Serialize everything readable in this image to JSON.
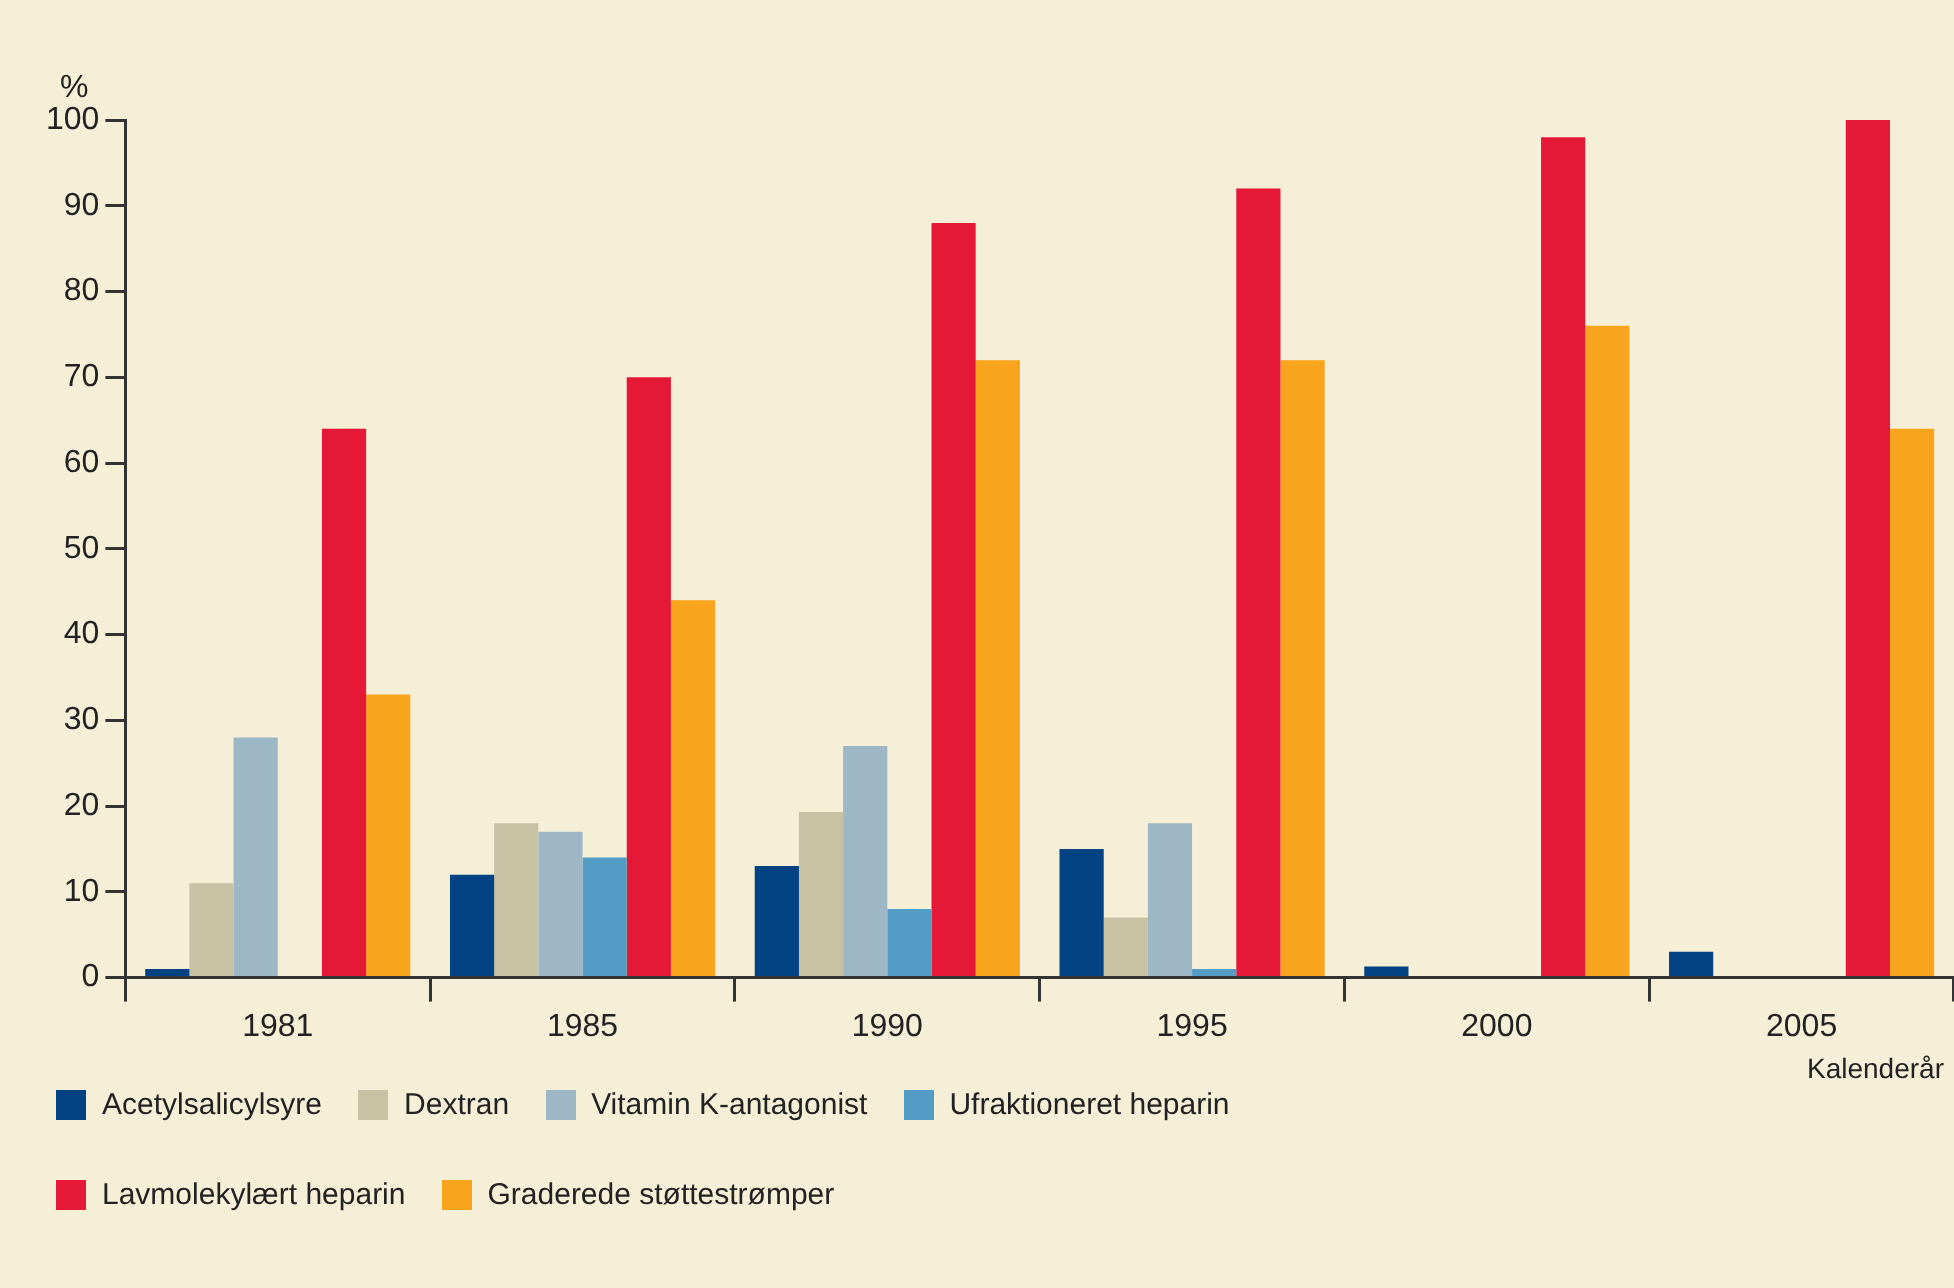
{
  "chart_data": {
    "type": "bar",
    "ylabel": "%",
    "xlabel": "Kalenderår",
    "categories": [
      "1981",
      "1985",
      "1990",
      "1995",
      "2000",
      "2005"
    ],
    "series": [
      {
        "name": "Acetylsalicylsyre",
        "color": "#004282",
        "values": [
          1,
          12,
          13,
          15,
          1.3,
          3
        ]
      },
      {
        "name": "Dextran",
        "color": "#c7c2a3",
        "values": [
          11,
          18,
          19.3,
          7,
          null,
          null
        ]
      },
      {
        "name": "Vitamin K-antagonist",
        "color": "#9db7c4",
        "values": [
          28,
          17,
          27,
          18,
          null,
          null
        ]
      },
      {
        "name": "Ufraktioneret heparin",
        "color": "#539cc5",
        "values": [
          null,
          14,
          8,
          1,
          null,
          null
        ]
      },
      {
        "name": "Lavmolekylært heparin",
        "color": "#e51937",
        "values": [
          64,
          70,
          88,
          92,
          98,
          100
        ]
      },
      {
        "name": "Graderede støttestrømper",
        "color": "#f8a41d",
        "values": [
          33,
          44,
          72,
          72,
          76,
          64
        ]
      }
    ],
    "ylim": [
      0,
      100
    ],
    "yticks": [
      0,
      10,
      20,
      30,
      40,
      50,
      60,
      70,
      80,
      90,
      100
    ],
    "grid": false,
    "legend": "bottom"
  }
}
